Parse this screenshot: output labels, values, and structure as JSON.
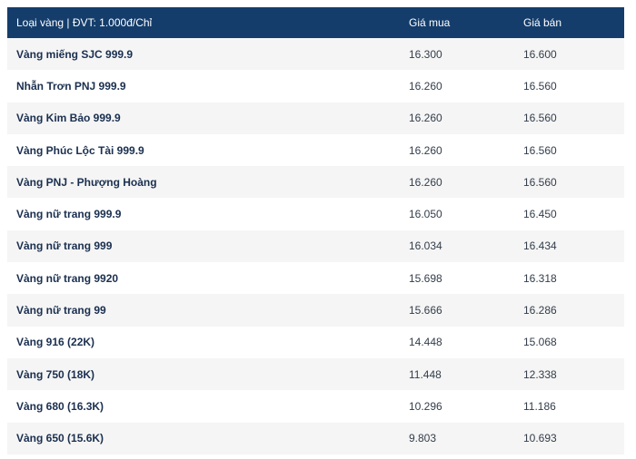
{
  "table": {
    "headers": {
      "type": "Loại vàng | ĐVT: 1.000đ/Chỉ",
      "buy": "Giá mua",
      "sell": "Giá bán"
    },
    "rows": [
      {
        "name": "Vàng miếng SJC 999.9",
        "buy": "16.300",
        "sell": "16.600"
      },
      {
        "name": "Nhẫn Trơn PNJ 999.9",
        "buy": "16.260",
        "sell": "16.560"
      },
      {
        "name": "Vàng Kim Bảo 999.9",
        "buy": "16.260",
        "sell": "16.560"
      },
      {
        "name": "Vàng Phúc Lộc Tài 999.9",
        "buy": "16.260",
        "sell": "16.560"
      },
      {
        "name": "Vàng PNJ - Phượng Hoàng",
        "buy": "16.260",
        "sell": "16.560"
      },
      {
        "name": "Vàng nữ trang 999.9",
        "buy": "16.050",
        "sell": "16.450"
      },
      {
        "name": "Vàng nữ trang 999",
        "buy": "16.034",
        "sell": "16.434"
      },
      {
        "name": "Vàng nữ trang 9920",
        "buy": "15.698",
        "sell": "16.318"
      },
      {
        "name": "Vàng nữ trang 99",
        "buy": "15.666",
        "sell": "16.286"
      },
      {
        "name": "Vàng 916 (22K)",
        "buy": "14.448",
        "sell": "15.068"
      },
      {
        "name": "Vàng 750 (18K)",
        "buy": "11.448",
        "sell": "12.338"
      },
      {
        "name": "Vàng 680 (16.3K)",
        "buy": "10.296",
        "sell": "11.186"
      },
      {
        "name": "Vàng 650 (15.6K)",
        "buy": "9.803",
        "sell": "10.693"
      }
    ]
  },
  "colors": {
    "header_bg": "#143d6b",
    "header_text": "#ffffff",
    "row_stripe": "#f5f5f5",
    "name_text": "#1a2f4f"
  }
}
